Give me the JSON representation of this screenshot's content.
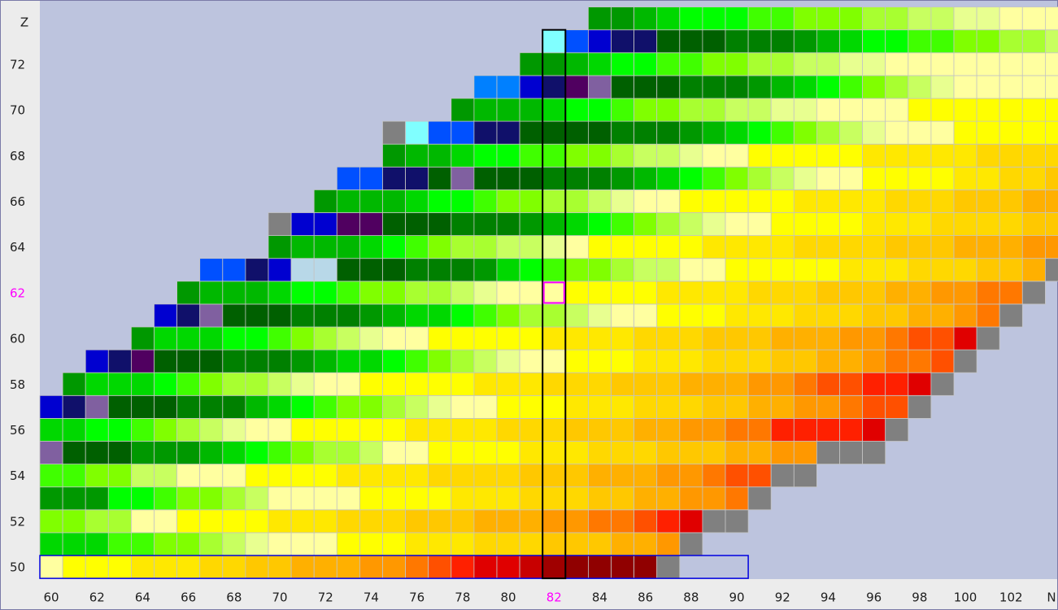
{
  "chart_data": {
    "type": "nuclide-grid",
    "x_label": "N",
    "y_label": "Z",
    "xticks": [
      60,
      62,
      64,
      66,
      68,
      70,
      72,
      74,
      76,
      78,
      80,
      82,
      84,
      86,
      88,
      90,
      92,
      94,
      96,
      98,
      100,
      102
    ],
    "yticks": [
      50,
      52,
      54,
      56,
      58,
      60,
      62,
      64,
      66,
      68,
      70,
      72
    ],
    "highlight_color": "#ff00ff",
    "highlight_column": 82,
    "highlight_cell": {
      "n": 82,
      "z": 62
    },
    "highlight_row": {
      "z": 50,
      "from": 60,
      "to": 90
    },
    "palette": {
      "B": "#0000d0",
      "C": "#0050ff",
      "E": "#0080ff",
      "F": "#80ffff",
      "H": "#b8d8e8",
      "K": "#10106a",
      "P": "#500060",
      "Q": "#8060a0",
      "D": "#006000",
      "d": "#008000",
      "e": "#009800",
      "g": "#00b800",
      "h": "#00d800",
      "i": "#00ff00",
      "j": "#40ff00",
      "k": "#80ff00",
      "l": "#a8ff30",
      "m": "#c8ff60",
      "n": "#e8ff90",
      "t": "#ffffa0",
      "y": "#ffff00",
      "u": "#ffe800",
      "v": "#ffd800",
      "w": "#ffc800",
      "x": "#ffb000",
      "o": "#ff9800",
      "p": "#ff7800",
      "q": "#ff5000",
      "r": "#ff2000",
      "s": "#e00000",
      "R": "#c80000",
      "M": "#a00000",
      "N": "#900000",
      "z": "#808080"
    },
    "rows": [
      {
        "z": 50,
        "start": 60,
        "cells": "tyyyuuuvvwwxxxoopqrssRMNNNNz"
      },
      {
        "z": 51,
        "start": 60,
        "cells": "hhhjjkklmntttyyyuuuvvvwwwxxoz"
      },
      {
        "z": 52,
        "start": 60,
        "cells": "kkllttyyyyuuuvvvwwwxxxooppqrszz"
      },
      {
        "z": 53,
        "start": 60,
        "cells": "eeeiijkklmttttyyyyuuuvvvwwxxoopz"
      },
      {
        "z": 54,
        "start": 60,
        "cells": "jjkkmmtttyyyyuuuuvvvvwwwxxxoopqqzz"
      },
      {
        "z": 55,
        "start": 60,
        "cells": "QDDDeeeghijkllmttyyyyuuuvvvwwwxxoozzz"
      },
      {
        "z": 56,
        "start": 60,
        "cells": "hhiijklmnttyyyyyuuuuvvvwwwxxoopprrrrsz"
      },
      {
        "z": 57,
        "start": 60,
        "cells": "BKQDDDdddghijkklmnttyyyuuuvvvwwxxoopqqz"
      },
      {
        "z": 58,
        "start": 61,
        "cells": "ehhhijkllmnttyyyyyuuuvvvwwwxxxoopqqrrsz"
      },
      {
        "z": 59,
        "start": 62,
        "cells": "BKPDDDdddeghhijklmnttyyyuuuvvvwwxxoppqz"
      },
      {
        "z": 60,
        "start": 64,
        "cells": "ehhhiijklmnttyyyyyuuuuvvvwwwxxxoopqqsz"
      },
      {
        "z": 61,
        "start": 65,
        "cells": "BKQDDDdddeghhijkllmnttyyyuuuvvvwwxxopz"
      },
      {
        "z": 62,
        "start": 66,
        "cells": "eggghiijkkllmntttyyyyuuuuvvvwwwxxooppz"
      },
      {
        "z": 63,
        "start": 67,
        "cells": "CCKBHHDDDdddehijkklmmttyyyyyuuuvvvwwxz"
      },
      {
        "z": 64,
        "start": 70,
        "cells": "eggghijkllmmntyyyyyuuuuvvvvwwwxxxoo"
      },
      {
        "z": 65,
        "start": 70,
        "cells": "zBBPPDDDdddeghijklmnttyyyyuuuvvvvww"
      },
      {
        "z": 66,
        "start": 72,
        "cells": "eggghiijkkllmnttyyyyyuuuuvvvwwwxx"
      },
      {
        "z": 67,
        "start": 73,
        "cells": "CCKKDQDDDdddeghijklmnttyyyyuuvvw"
      },
      {
        "z": 68,
        "start": 75,
        "cells": "egghiijjkklmmnttyyyyyuuuuuvvvv"
      },
      {
        "z": 69,
        "start": 75,
        "cells": "zFCCKKDDDDdddeghijklmntttyyyyy"
      },
      {
        "z": 70,
        "start": 78,
        "cells": "eggghiijkkllmmnnttttyyyyyyy"
      },
      {
        "z": 71,
        "start": 79,
        "cells": "EEBKPQDDDdddeghijklmnttttt"
      },
      {
        "z": 72,
        "start": 81,
        "cells": "eeghiijjkkllmmnntttttttt"
      },
      {
        "z": 73,
        "start": 82,
        "cells": "FCBKKDDDdddeghiijjkkllm"
      },
      {
        "z": 74,
        "start": 84,
        "cells": "eeghiiijjkkkllmmnnttt"
      }
    ]
  }
}
